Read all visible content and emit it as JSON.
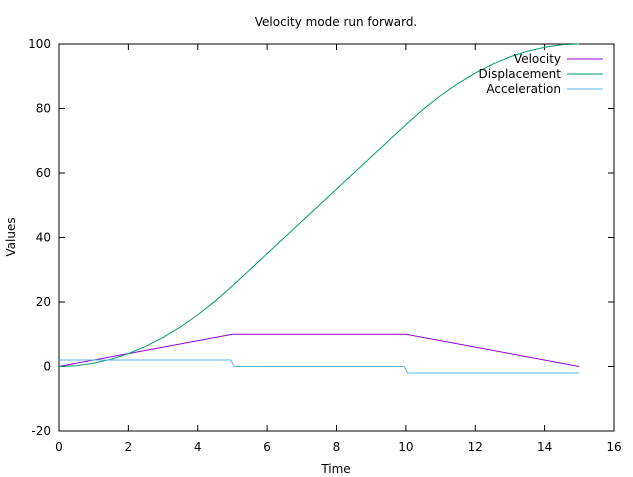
{
  "chart_data": {
    "type": "line",
    "title": "Velocity mode run forward.",
    "xlabel": "Time",
    "ylabel": "Values",
    "xlim": [
      0,
      16
    ],
    "ylim": [
      -20,
      100
    ],
    "xticks": [
      0,
      2,
      4,
      6,
      8,
      10,
      12,
      14,
      16
    ],
    "yticks": [
      -20,
      0,
      20,
      40,
      60,
      80,
      100
    ],
    "grid": false,
    "legend_position": "top-right",
    "series": [
      {
        "name": "Velocity",
        "color": "#9400d3",
        "x": [
          0,
          5,
          10,
          15
        ],
        "y": [
          0,
          10,
          10,
          0
        ]
      },
      {
        "name": "Displacement",
        "color": "#009e73",
        "x": [
          0,
          0.5,
          1,
          1.5,
          2,
          2.5,
          3,
          3.5,
          4,
          4.5,
          5,
          6,
          7,
          8,
          9,
          10,
          10.5,
          11,
          11.5,
          12,
          12.5,
          13,
          13.5,
          14,
          14.5,
          15
        ],
        "y": [
          0,
          0.25,
          1,
          2.25,
          4,
          6.25,
          9,
          12.25,
          16,
          20.25,
          25,
          35,
          45,
          55,
          65,
          75,
          79.75,
          84,
          87.75,
          91,
          93.75,
          96,
          97.75,
          99,
          99.75,
          100
        ]
      },
      {
        "name": "Acceleration",
        "color": "#56b4e9",
        "x": [
          0,
          4.95,
          5.05,
          9.95,
          10.05,
          15
        ],
        "y": [
          2,
          2,
          0,
          0,
          -2,
          -2
        ]
      }
    ]
  }
}
